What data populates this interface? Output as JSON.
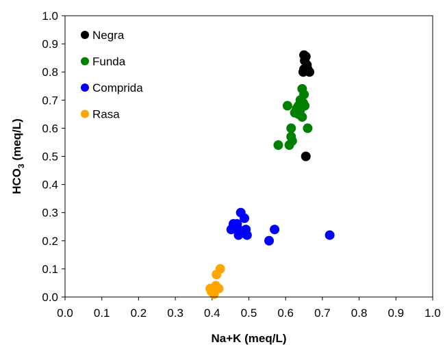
{
  "chart_data": {
    "type": "scatter",
    "xlabel": "Na+K (meq/L)",
    "ylabel": {
      "main": "HCO",
      "sub": "3",
      "unit": " (meq/L)"
    },
    "xlim": [
      0.0,
      1.0
    ],
    "ylim": [
      0.0,
      1.0
    ],
    "x_ticks": [
      "0.0",
      "0.1",
      "0.2",
      "0.3",
      "0.4",
      "0.5",
      "0.6",
      "0.7",
      "0.8",
      "0.9",
      "1.0"
    ],
    "y_ticks": [
      "0.0",
      "0.1",
      "0.2",
      "0.3",
      "0.4",
      "0.5",
      "0.6",
      "0.7",
      "0.8",
      "0.9",
      "1.0"
    ],
    "grid": false,
    "legend_position": "top-left",
    "series": [
      {
        "name": "Negra",
        "color": "#000000",
        "points": [
          [
            0.65,
            0.86
          ],
          [
            0.655,
            0.855
          ],
          [
            0.652,
            0.84
          ],
          [
            0.658,
            0.825
          ],
          [
            0.65,
            0.81
          ],
          [
            0.66,
            0.81
          ],
          [
            0.648,
            0.8
          ],
          [
            0.665,
            0.8
          ],
          [
            0.655,
            0.5
          ]
        ]
      },
      {
        "name": "Funda",
        "color": "#008000",
        "points": [
          [
            0.645,
            0.74
          ],
          [
            0.65,
            0.72
          ],
          [
            0.64,
            0.7
          ],
          [
            0.648,
            0.69
          ],
          [
            0.635,
            0.68
          ],
          [
            0.652,
            0.68
          ],
          [
            0.605,
            0.68
          ],
          [
            0.63,
            0.67
          ],
          [
            0.64,
            0.665
          ],
          [
            0.625,
            0.655
          ],
          [
            0.635,
            0.65
          ],
          [
            0.645,
            0.64
          ],
          [
            0.615,
            0.6
          ],
          [
            0.66,
            0.6
          ],
          [
            0.615,
            0.57
          ],
          [
            0.618,
            0.555
          ],
          [
            0.61,
            0.54
          ],
          [
            0.58,
            0.54
          ]
        ]
      },
      {
        "name": "Comprida",
        "color": "#0000ff",
        "points": [
          [
            0.478,
            0.3
          ],
          [
            0.488,
            0.28
          ],
          [
            0.468,
            0.26
          ],
          [
            0.458,
            0.26
          ],
          [
            0.492,
            0.24
          ],
          [
            0.452,
            0.24
          ],
          [
            0.472,
            0.24
          ],
          [
            0.48,
            0.23
          ],
          [
            0.495,
            0.22
          ],
          [
            0.472,
            0.22
          ],
          [
            0.555,
            0.2
          ],
          [
            0.57,
            0.24
          ],
          [
            0.72,
            0.22
          ]
        ]
      },
      {
        "name": "Rasa",
        "color": "#ffa500",
        "points": [
          [
            0.422,
            0.1
          ],
          [
            0.412,
            0.08
          ],
          [
            0.41,
            0.04
          ],
          [
            0.418,
            0.03
          ],
          [
            0.395,
            0.03
          ],
          [
            0.402,
            0.02
          ],
          [
            0.405,
            0.01
          ],
          [
            0.398,
            0.02
          ]
        ]
      }
    ]
  }
}
